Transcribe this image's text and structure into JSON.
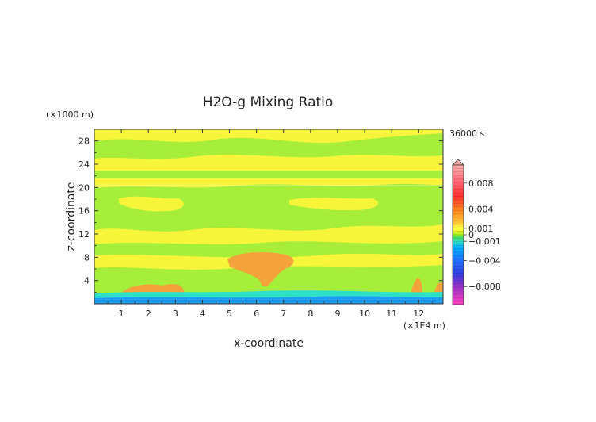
{
  "chart_data": {
    "type": "heatmap",
    "title": "H2O-g Mixing Ratio",
    "xlabel": "x-coordinate",
    "ylabel": "z-coordinate",
    "x_unit": "(×1E4 m)",
    "y_unit": "(×1000 m)",
    "time_label": "36000 s",
    "x_ticks": [
      "1",
      "2",
      "3",
      "4",
      "5",
      "6",
      "7",
      "8",
      "9",
      "10",
      "11",
      "12"
    ],
    "x_tick_values": [
      1,
      2,
      3,
      4,
      5,
      6,
      7,
      8,
      9,
      10,
      11,
      12
    ],
    "y_ticks": [
      "4",
      "8",
      "12",
      "16",
      "20",
      "24",
      "28"
    ],
    "y_tick_values": [
      4,
      8,
      12,
      16,
      20,
      24,
      28
    ],
    "xlim": [
      0,
      12.9
    ],
    "ylim": [
      0,
      30
    ],
    "colorbar": {
      "labels": [
        "0.008",
        "0.004",
        "0.001",
        "0",
        "−0.001",
        "−0.004",
        "−0.008"
      ],
      "label_values": [
        0.008,
        0.004,
        0.001,
        0,
        -0.001,
        -0.004,
        -0.008
      ],
      "range": [
        -0.0108,
        0.0108
      ],
      "stops": [
        {
          "v": -0.0108,
          "c": "#ff40c0"
        },
        {
          "v": -0.008,
          "c": "#9a30c8"
        },
        {
          "v": -0.006,
          "c": "#3040e0"
        },
        {
          "v": -0.004,
          "c": "#2070ff"
        },
        {
          "v": -0.002,
          "c": "#00b0ff"
        },
        {
          "v": -0.001,
          "c": "#30e0c0"
        },
        {
          "v": -0.0003,
          "c": "#50e050"
        },
        {
          "v": 0,
          "c": "#a0f020"
        },
        {
          "v": 0.0004,
          "c": "#e0f020"
        },
        {
          "v": 0.001,
          "c": "#ffff40"
        },
        {
          "v": 0.002,
          "c": "#ffc030"
        },
        {
          "v": 0.004,
          "c": "#ff8020"
        },
        {
          "v": 0.006,
          "c": "#ff3030"
        },
        {
          "v": 0.008,
          "c": "#ff6070"
        },
        {
          "v": 0.0108,
          "c": "#ffb0b0"
        }
      ]
    },
    "field_colors": {
      "green": "#a6ee3a",
      "yellow": "#f6f53a",
      "orange": "#f5a23a",
      "cyan": "#2fe0c8",
      "blue": "#1e9cf0"
    },
    "bands": [
      {
        "z": [
          0,
          1.5
        ],
        "value": "cyan-blue"
      },
      {
        "z": [
          1.5,
          4.5
        ],
        "value": "green"
      },
      {
        "z": [
          4.5,
          7.5
        ],
        "value": "yellow"
      },
      {
        "z": [
          7.5,
          11
        ],
        "value": "green"
      },
      {
        "z": [
          11,
          14.5
        ],
        "value": "yellow"
      },
      {
        "z": [
          14.5,
          20.5
        ],
        "value": "green"
      },
      {
        "z": [
          20.5,
          30
        ],
        "value": "yellow"
      }
    ],
    "features": [
      {
        "label": "orange plume",
        "x": [
          5.0,
          7.4
        ],
        "z": [
          2.5,
          8.6
        ],
        "value": 0.002
      },
      {
        "label": "orange patch",
        "x": [
          1.5,
          3.5
        ],
        "z": [
          1.0,
          4.0
        ],
        "value": 0.002
      },
      {
        "label": "orange patch",
        "x": [
          11.8,
          12.2
        ],
        "z": [
          1.0,
          4.5
        ],
        "value": 0.002
      },
      {
        "label": "orange patch",
        "x": [
          12.5,
          12.9
        ],
        "z": [
          1.0,
          4.0
        ],
        "value": 0.002
      }
    ]
  }
}
